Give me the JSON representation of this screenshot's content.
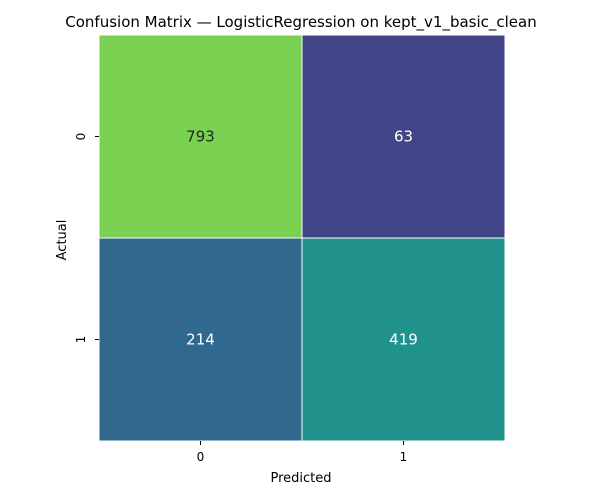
{
  "chart_data": {
    "type": "heatmap",
    "title": "Confusion Matrix — LogisticRegression on kept_v1_basic_clean",
    "xlabel": "Predicted",
    "ylabel": "Actual",
    "x_categories": [
      "0",
      "1"
    ],
    "y_categories": [
      "0",
      "1"
    ],
    "values": [
      [
        793,
        63
      ],
      [
        214,
        419
      ]
    ],
    "colormap": "viridis",
    "value_range": [
      63,
      793
    ],
    "colorbar": false,
    "cell_colors": [
      [
        "#7AD151",
        "#414487"
      ],
      [
        "#31688E",
        "#21918C"
      ]
    ],
    "cell_text_colors": [
      [
        "#262626",
        "#FFFFFF"
      ],
      [
        "#FFFFFF",
        "#FFFFFF"
      ]
    ]
  }
}
